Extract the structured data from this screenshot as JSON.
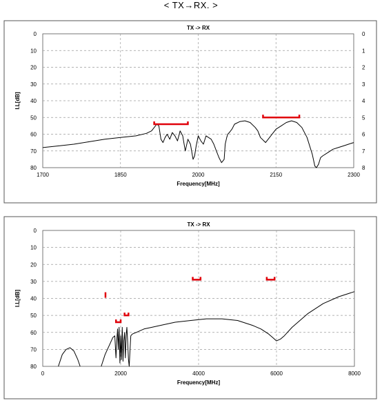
{
  "page": {
    "title": "< TX→RX. >"
  },
  "chart_data": [
    {
      "type": "line",
      "title": "TX -> RX",
      "xlabel": "Frequency[MHz]",
      "ylabel": "I.L[dB]",
      "xlim": [
        1700,
        2300
      ],
      "ylim": [
        0,
        80
      ],
      "y_inverted": true,
      "x_ticks": [
        "1700",
        "1850",
        "2000",
        "2150",
        "2300"
      ],
      "y_ticks": [
        "0",
        "10",
        "20",
        "30",
        "40",
        "50",
        "60",
        "70",
        "80"
      ],
      "y2_ticks": [
        "0",
        "1",
        "2",
        "3",
        "4",
        "5",
        "6",
        "7",
        "8"
      ],
      "grid": true,
      "series": [
        {
          "x": [
            1700,
            1730,
            1760,
            1790,
            1820,
            1850,
            1880,
            1900,
            1910,
            1915,
            1920,
            1924,
            1928,
            1932,
            1936,
            1940,
            1945,
            1950,
            1955,
            1960,
            1965,
            1970,
            1975,
            1980,
            1985,
            1990,
            1993,
            1996,
            2000,
            2005,
            2010,
            2015,
            2020,
            2025,
            2030,
            2035,
            2040,
            2045,
            2050,
            2052,
            2055,
            2057,
            2060,
            2065,
            2070,
            2080,
            2090,
            2100,
            2110,
            2115,
            2120,
            2130,
            2140,
            2150,
            2160,
            2170,
            2180,
            2190,
            2200,
            2210,
            2220,
            2225,
            2228,
            2232,
            2236,
            2240,
            2250,
            2260,
            2270,
            2280,
            2290,
            2300
          ],
          "y": [
            68,
            67,
            66,
            64.5,
            63,
            62,
            61,
            59.5,
            58,
            56,
            54,
            55,
            63,
            65,
            62,
            60,
            63,
            59,
            61,
            64,
            58,
            61,
            70,
            63,
            66,
            75,
            73,
            67,
            61,
            64,
            66,
            61,
            62,
            63,
            66,
            70,
            74,
            77,
            75,
            66,
            62,
            60,
            59,
            57,
            54,
            52.5,
            52,
            53,
            56,
            58,
            62,
            65,
            61,
            57,
            55,
            53,
            52,
            53,
            56,
            62,
            72,
            79,
            80,
            78,
            74,
            73,
            71,
            69,
            68,
            67,
            66,
            65
          ]
        }
      ],
      "spec_masks": [
        {
          "x_range": [
            1915,
            1980
          ],
          "y": 54
        },
        {
          "x_range": [
            2125,
            2195
          ],
          "y": 50
        }
      ]
    },
    {
      "type": "line",
      "title": "TX -> RX",
      "xlabel": "Frequency[MHz]",
      "ylabel": "I.L[dB]",
      "xlim": [
        0,
        8000
      ],
      "ylim": [
        0,
        80
      ],
      "y_inverted": true,
      "x_ticks": [
        "0",
        "2000",
        "4000",
        "6000",
        "8000"
      ],
      "y_ticks": [
        "0",
        "10",
        "20",
        "30",
        "40",
        "50",
        "60",
        "70",
        "80"
      ],
      "grid": true,
      "series": [
        {
          "x": [
            400,
            500,
            600,
            700,
            800,
            900,
            960
          ],
          "y": [
            80,
            73,
            70,
            69,
            71,
            76,
            80
          ]
        },
        {
          "x": [
            1500,
            1600,
            1700,
            1800,
            1850,
            1880,
            1900,
            1920,
            1940,
            1960,
            1980,
            2000,
            2020,
            2040,
            2060,
            2080,
            2100,
            2120,
            2140,
            2160,
            2180,
            2200,
            2220,
            2240,
            2260,
            2300,
            2400,
            2600,
            2800,
            3000,
            3400,
            3800,
            4200,
            4600,
            5000,
            5400,
            5600,
            5800,
            5900,
            6000,
            6100,
            6200,
            6400,
            6800,
            7200,
            7600,
            8000
          ],
          "y": [
            80,
            73,
            68,
            63,
            62,
            75,
            65,
            58,
            70,
            57,
            78,
            62,
            76,
            57,
            77,
            65,
            60,
            75,
            62,
            57,
            66,
            76,
            80,
            70,
            62,
            61,
            60,
            58,
            57,
            56,
            54,
            53,
            52,
            52,
            53,
            56,
            58,
            61,
            63,
            65,
            64,
            62,
            57,
            49,
            43,
            39,
            36
          ]
        }
      ],
      "spec_masks": [
        {
          "x_range": [
            1580,
            1640
          ],
          "y": 38,
          "shape": "tick"
        },
        {
          "x_range": [
            1880,
            2000
          ],
          "y": 54
        },
        {
          "x_range": [
            2100,
            2200
          ],
          "y": 50
        },
        {
          "x_range": [
            3850,
            4050
          ],
          "y": 29
        },
        {
          "x_range": [
            5750,
            5950
          ],
          "y": 29
        }
      ]
    }
  ],
  "colors": {
    "trace": "#000000",
    "spec_mask": "#e0000a",
    "grid": "#9a9a9a"
  }
}
